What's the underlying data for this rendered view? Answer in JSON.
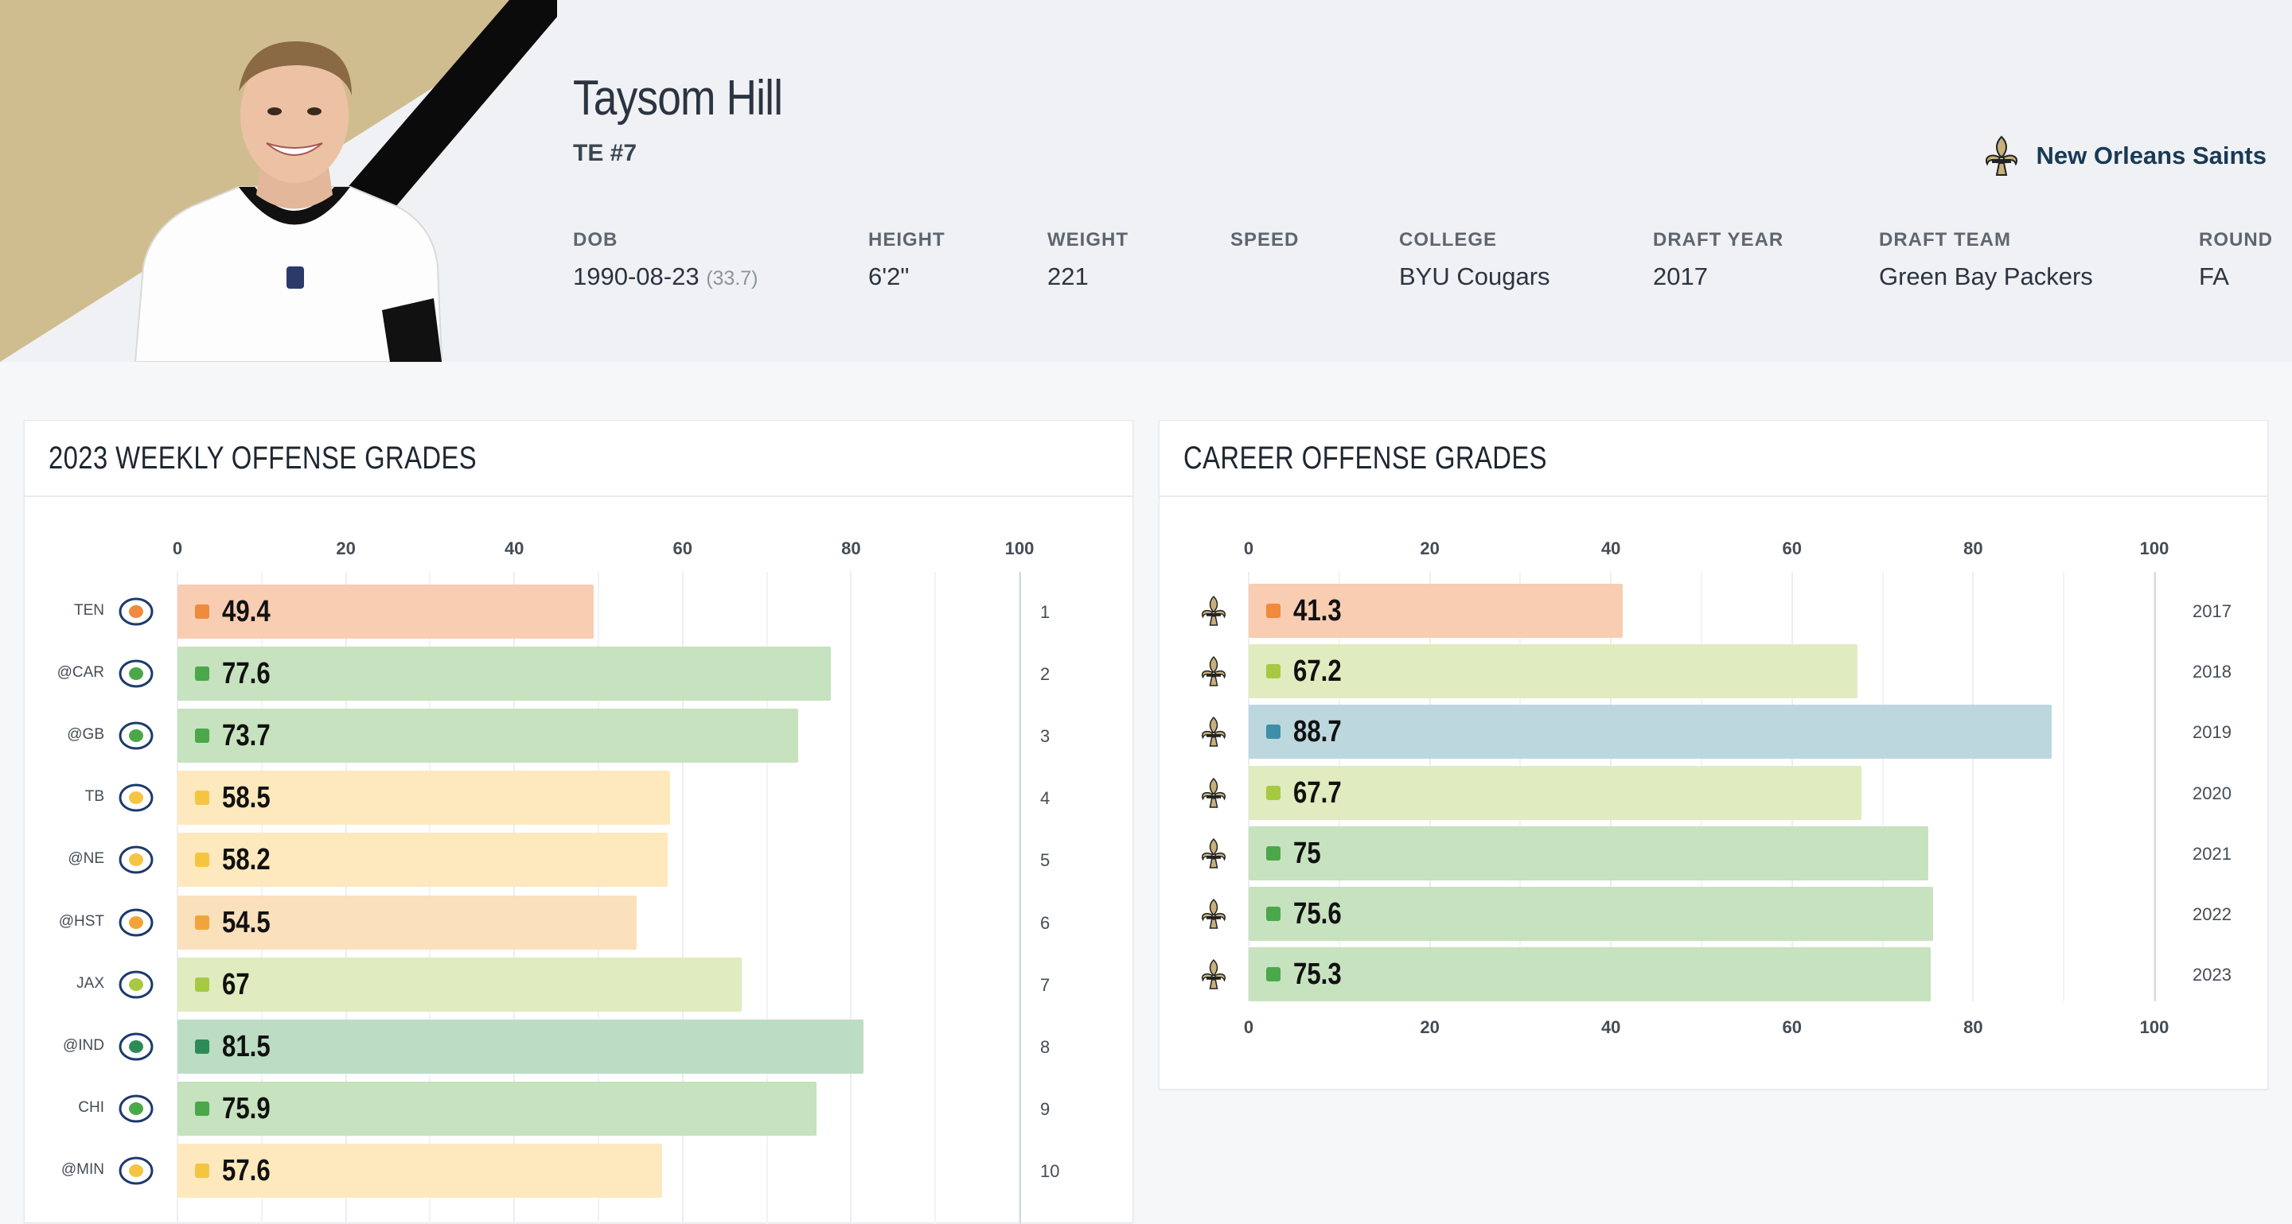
{
  "player": {
    "name": "Taysom Hill",
    "position": "TE #7",
    "team": "New Orleans Saints"
  },
  "info": [
    {
      "label": "DOB",
      "value": "1990-08-23",
      "sub": "(33.7)"
    },
    {
      "label": "HEIGHT",
      "value": "6'2\""
    },
    {
      "label": "WEIGHT",
      "value": "221"
    },
    {
      "label": "SPEED",
      "value": ""
    },
    {
      "label": "COLLEGE",
      "value": "BYU Cougars"
    },
    {
      "label": "DRAFT YEAR",
      "value": "2017"
    },
    {
      "label": "DRAFT TEAM",
      "value": "Green Bay Packers"
    },
    {
      "label": "ROUND",
      "value": "FA"
    }
  ],
  "colors": {
    "tan": "#d0bd8f",
    "orange": "#f08a3c",
    "orange_bg": "#f8cdb2",
    "amber": "#f2a43a",
    "amber_bg": "#fbe0bc",
    "yellow": "#f5c542",
    "yellow_bg": "#fde9bd",
    "lime": "#a7c942",
    "lime_bg": "#e0ebbf",
    "green": "#4aa84a",
    "green_bg": "#c7e2be",
    "dkgreen": "#2e8b57",
    "dkgreen_bg": "#bcdcc4",
    "teal": "#3d8fa6",
    "teal_bg": "#bcd8de"
  },
  "weekly": {
    "title": "2023 WEEKLY OFFENSE GRADES",
    "ticks": [
      "0",
      "20",
      "40",
      "60",
      "80",
      "100"
    ],
    "rows": [
      {
        "opp": "TEN",
        "icon": "titans-logo-icon",
        "grade": 49.4,
        "label": "49.4",
        "week": "1",
        "tone": "orange"
      },
      {
        "opp": "@CAR",
        "icon": "panthers-logo-icon",
        "grade": 77.6,
        "label": "77.6",
        "week": "2",
        "tone": "green"
      },
      {
        "opp": "@GB",
        "icon": "packers-logo-icon",
        "grade": 73.7,
        "label": "73.7",
        "week": "3",
        "tone": "green"
      },
      {
        "opp": "TB",
        "icon": "buccaneers-logo-icon",
        "grade": 58.5,
        "label": "58.5",
        "week": "4",
        "tone": "yellow"
      },
      {
        "opp": "@NE",
        "icon": "patriots-logo-icon",
        "grade": 58.2,
        "label": "58.2",
        "week": "5",
        "tone": "yellow"
      },
      {
        "opp": "@HST",
        "icon": "texans-logo-icon",
        "grade": 54.5,
        "label": "54.5",
        "week": "6",
        "tone": "amber"
      },
      {
        "opp": "JAX",
        "icon": "jaguars-logo-icon",
        "grade": 67,
        "label": "67",
        "week": "7",
        "tone": "lime"
      },
      {
        "opp": "@IND",
        "icon": "colts-logo-icon",
        "grade": 81.5,
        "label": "81.5",
        "week": "8",
        "tone": "dkgreen"
      },
      {
        "opp": "CHI",
        "icon": "bears-logo-icon",
        "grade": 75.9,
        "label": "75.9",
        "week": "9",
        "tone": "green"
      },
      {
        "opp": "@MIN",
        "icon": "vikings-logo-icon",
        "grade": 57.6,
        "label": "57.6",
        "week": "10",
        "tone": "yellow"
      }
    ]
  },
  "career": {
    "title": "CAREER OFFENSE GRADES",
    "ticks": [
      "0",
      "20",
      "40",
      "60",
      "80",
      "100"
    ],
    "rows": [
      {
        "grade": 41.3,
        "label": "41.3",
        "year": "2017",
        "tone": "orange"
      },
      {
        "grade": 67.2,
        "label": "67.2",
        "year": "2018",
        "tone": "lime"
      },
      {
        "grade": 88.7,
        "label": "88.7",
        "year": "2019",
        "tone": "teal"
      },
      {
        "grade": 67.7,
        "label": "67.7",
        "year": "2020",
        "tone": "lime"
      },
      {
        "grade": 75,
        "label": "75",
        "year": "2021",
        "tone": "green"
      },
      {
        "grade": 75.6,
        "label": "75.6",
        "year": "2022",
        "tone": "green"
      },
      {
        "grade": 75.3,
        "label": "75.3",
        "year": "2023",
        "tone": "green"
      }
    ]
  }
}
